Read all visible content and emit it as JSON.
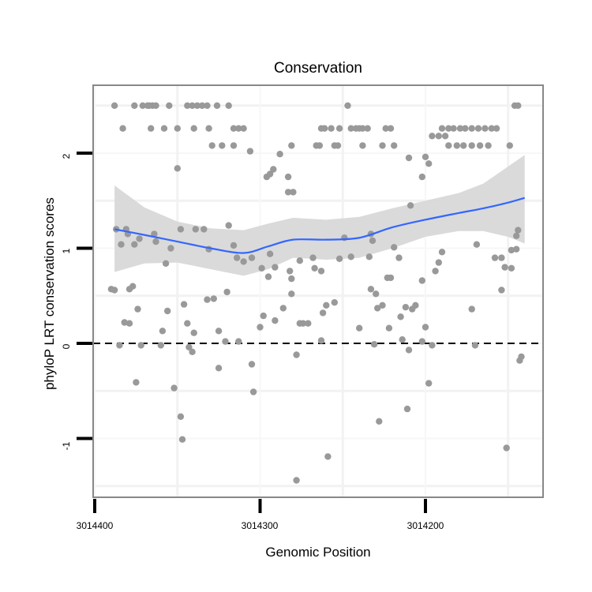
{
  "chart_data": {
    "type": "scatter",
    "title": "Conservation",
    "xlabel": "Genomic Position",
    "ylabel": "phyloP LRT conservation scores",
    "x_reversed": true,
    "xlim": [
      3014401,
      3014128
    ],
    "ylim": [
      -1.6,
      2.6
    ],
    "x_ticks": [
      3014400,
      3014300,
      3014200
    ],
    "x_tick_labels": [
      "3014400",
      "3014300",
      "3014200"
    ],
    "y_ticks": [
      -1,
      0,
      1,
      2
    ],
    "y_tick_labels": [
      "-1",
      "0",
      "1",
      "2"
    ],
    "hline": {
      "y": 0,
      "style": "dashed"
    },
    "grid": true,
    "colors": {
      "points": "#999999",
      "smooth": "#3366FF",
      "band": "#D6D6D6",
      "frame": "#888888"
    },
    "points": [
      [
        3014388,
        2.5
      ],
      [
        3014376,
        2.5
      ],
      [
        3014371,
        2.5
      ],
      [
        3014368,
        2.5
      ],
      [
        3014367,
        2.5
      ],
      [
        3014365,
        2.5
      ],
      [
        3014363,
        2.5
      ],
      [
        3014355,
        2.5
      ],
      [
        3014344,
        2.5
      ],
      [
        3014341,
        2.5
      ],
      [
        3014338,
        2.5
      ],
      [
        3014335,
        2.5
      ],
      [
        3014332,
        2.5
      ],
      [
        3014326,
        2.5
      ],
      [
        3014319,
        2.5
      ],
      [
        3014247,
        2.5
      ],
      [
        3014146,
        2.5
      ],
      [
        3014144,
        2.5
      ],
      [
        3014383,
        2.26
      ],
      [
        3014366,
        2.26
      ],
      [
        3014358,
        2.26
      ],
      [
        3014350,
        2.26
      ],
      [
        3014340,
        2.26
      ],
      [
        3014331,
        2.26
      ],
      [
        3014316,
        2.26
      ],
      [
        3014313,
        2.26
      ],
      [
        3014310,
        2.26
      ],
      [
        3014263,
        2.26
      ],
      [
        3014261,
        2.26
      ],
      [
        3014257,
        2.26
      ],
      [
        3014252,
        2.26
      ],
      [
        3014245,
        2.26
      ],
      [
        3014242,
        2.26
      ],
      [
        3014240,
        2.26
      ],
      [
        3014238,
        2.26
      ],
      [
        3014235,
        2.26
      ],
      [
        3014224,
        2.26
      ],
      [
        3014221,
        2.26
      ],
      [
        3014190,
        2.26
      ],
      [
        3014186,
        2.26
      ],
      [
        3014183,
        2.26
      ],
      [
        3014179,
        2.26
      ],
      [
        3014176,
        2.26
      ],
      [
        3014172,
        2.26
      ],
      [
        3014168,
        2.26
      ],
      [
        3014164,
        2.26
      ],
      [
        3014160,
        2.26
      ],
      [
        3014157,
        2.26
      ],
      [
        3014196,
        2.18
      ],
      [
        3014192,
        2.18
      ],
      [
        3014188,
        2.18
      ],
      [
        3014329,
        2.08
      ],
      [
        3014323,
        2.08
      ],
      [
        3014316,
        2.08
      ],
      [
        3014281,
        2.08
      ],
      [
        3014266,
        2.08
      ],
      [
        3014264,
        2.08
      ],
      [
        3014255,
        2.08
      ],
      [
        3014253,
        2.08
      ],
      [
        3014238,
        2.08
      ],
      [
        3014226,
        2.08
      ],
      [
        3014219,
        2.08
      ],
      [
        3014186,
        2.08
      ],
      [
        3014181,
        2.08
      ],
      [
        3014177,
        2.08
      ],
      [
        3014172,
        2.08
      ],
      [
        3014167,
        2.08
      ],
      [
        3014162,
        2.08
      ],
      [
        3014149,
        2.08
      ],
      [
        3014306,
        2.02
      ],
      [
        3014350,
        1.84
      ],
      [
        3014288,
        1.99
      ],
      [
        3014294,
        1.78
      ],
      [
        3014292,
        1.83
      ],
      [
        3014296,
        1.75
      ],
      [
        3014283,
        1.75
      ],
      [
        3014280,
        1.59
      ],
      [
        3014283,
        1.59
      ],
      [
        3014210,
        1.95
      ],
      [
        3014200,
        1.96
      ],
      [
        3014198,
        1.89
      ],
      [
        3014202,
        1.75
      ],
      [
        3014209,
        1.45
      ],
      [
        3014387,
        1.2
      ],
      [
        3014381,
        1.2
      ],
      [
        3014384,
        1.04
      ],
      [
        3014380,
        1.15
      ],
      [
        3014373,
        1.1
      ],
      [
        3014376,
        1.04
      ],
      [
        3014364,
        1.15
      ],
      [
        3014363,
        1.07
      ],
      [
        3014357,
        0.84
      ],
      [
        3014354,
        1.0
      ],
      [
        3014348,
        1.2
      ],
      [
        3014339,
        1.2
      ],
      [
        3014334,
        1.2
      ],
      [
        3014331,
        0.99
      ],
      [
        3014319,
        1.24
      ],
      [
        3014316,
        1.03
      ],
      [
        3014314,
        0.9
      ],
      [
        3014310,
        0.86
      ],
      [
        3014305,
        0.9
      ],
      [
        3014299,
        0.79
      ],
      [
        3014294,
        0.94
      ],
      [
        3014291,
        0.8
      ],
      [
        3014282,
        0.76
      ],
      [
        3014281,
        0.68
      ],
      [
        3014276,
        0.87
      ],
      [
        3014252,
        0.89
      ],
      [
        3014249,
        1.11
      ],
      [
        3014245,
        0.91
      ],
      [
        3014233,
        1.15
      ],
      [
        3014232,
        1.08
      ],
      [
        3014234,
        0.91
      ],
      [
        3014219,
        1.01
      ],
      [
        3014216,
        0.9
      ],
      [
        3014190,
        0.96
      ],
      [
        3014192,
        0.85
      ],
      [
        3014169,
        1.04
      ],
      [
        3014158,
        0.9
      ],
      [
        3014154,
        0.9
      ],
      [
        3014144,
        1.19
      ],
      [
        3014145,
        1.13
      ],
      [
        3014145,
        0.99
      ],
      [
        3014148,
        0.98
      ],
      [
        3014148,
        0.79
      ],
      [
        3014152,
        0.8
      ],
      [
        3014390,
        0.57
      ],
      [
        3014388,
        0.56
      ],
      [
        3014379,
        0.57
      ],
      [
        3014377,
        0.6
      ],
      [
        3014374,
        0.36
      ],
      [
        3014382,
        0.22
      ],
      [
        3014379,
        0.21
      ],
      [
        3014385,
        -0.02
      ],
      [
        3014372,
        -0.02
      ],
      [
        3014375,
        -0.41
      ],
      [
        3014360,
        -0.02
      ],
      [
        3014359,
        0.13
      ],
      [
        3014356,
        0.34
      ],
      [
        3014352,
        -0.47
      ],
      [
        3014348,
        -0.77
      ],
      [
        3014347,
        -1.01
      ],
      [
        3014346,
        0.41
      ],
      [
        3014344,
        0.21
      ],
      [
        3014343,
        -0.04
      ],
      [
        3014341,
        -0.09
      ],
      [
        3014340,
        0.11
      ],
      [
        3014332,
        0.46
      ],
      [
        3014328,
        0.47
      ],
      [
        3014325,
        -0.26
      ],
      [
        3014325,
        0.13
      ],
      [
        3014321,
        0.02
      ],
      [
        3014320,
        0.54
      ],
      [
        3014313,
        0.02
      ],
      [
        3014305,
        -0.22
      ],
      [
        3014304,
        -0.51
      ],
      [
        3014300,
        0.17
      ],
      [
        3014298,
        0.29
      ],
      [
        3014295,
        0.7
      ],
      [
        3014291,
        0.24
      ],
      [
        3014286,
        0.37
      ],
      [
        3014281,
        0.52
      ],
      [
        3014278,
        -0.12
      ],
      [
        3014278,
        -1.44
      ],
      [
        3014276,
        0.21
      ],
      [
        3014274,
        0.21
      ],
      [
        3014271,
        0.21
      ],
      [
        3014268,
        0.9
      ],
      [
        3014267,
        0.79
      ],
      [
        3014263,
        0.76
      ],
      [
        3014262,
        0.32
      ],
      [
        3014260,
        0.4
      ],
      [
        3014259,
        -1.19
      ],
      [
        3014255,
        0.43
      ],
      [
        3014263,
        0.03
      ],
      [
        3014240,
        0.16
      ],
      [
        3014233,
        0.57
      ],
      [
        3014230,
        0.52
      ],
      [
        3014229,
        0.37
      ],
      [
        3014226,
        0.4
      ],
      [
        3014231,
        -0.01
      ],
      [
        3014228,
        -0.82
      ],
      [
        3014223,
        0.69
      ],
      [
        3014221,
        0.69
      ],
      [
        3014222,
        0.16
      ],
      [
        3014215,
        0.28
      ],
      [
        3014214,
        0.04
      ],
      [
        3014212,
        0.38
      ],
      [
        3014211,
        -0.69
      ],
      [
        3014210,
        -0.07
      ],
      [
        3014208,
        0.36
      ],
      [
        3014206,
        0.4
      ],
      [
        3014202,
        0.66
      ],
      [
        3014202,
        0.02
      ],
      [
        3014200,
        0.17
      ],
      [
        3014196,
        -0.02
      ],
      [
        3014198,
        -0.42
      ],
      [
        3014194,
        0.76
      ],
      [
        3014172,
        0.36
      ],
      [
        3014170,
        -0.02
      ],
      [
        3014154,
        0.56
      ],
      [
        3014143,
        -0.18
      ],
      [
        3014142,
        -0.14
      ],
      [
        3014151,
        -1.1
      ]
    ],
    "smooth": {
      "x": [
        3014388,
        3014370,
        3014350,
        3014330,
        3014310,
        3014295,
        3014280,
        3014260,
        3014240,
        3014220,
        3014200,
        3014180,
        3014165,
        3014150,
        3014140
      ],
      "y": [
        1.2,
        1.14,
        1.07,
        1.0,
        0.95,
        1.02,
        1.09,
        1.09,
        1.11,
        1.22,
        1.3,
        1.37,
        1.42,
        1.48,
        1.53
      ],
      "lower": [
        0.75,
        0.84,
        0.85,
        0.78,
        0.71,
        0.78,
        0.9,
        0.88,
        0.9,
        1.0,
        1.12,
        1.18,
        1.18,
        1.12,
        1.05
      ],
      "upper": [
        1.66,
        1.43,
        1.28,
        1.21,
        1.19,
        1.26,
        1.32,
        1.3,
        1.33,
        1.42,
        1.5,
        1.58,
        1.68,
        1.86,
        1.98
      ]
    }
  }
}
